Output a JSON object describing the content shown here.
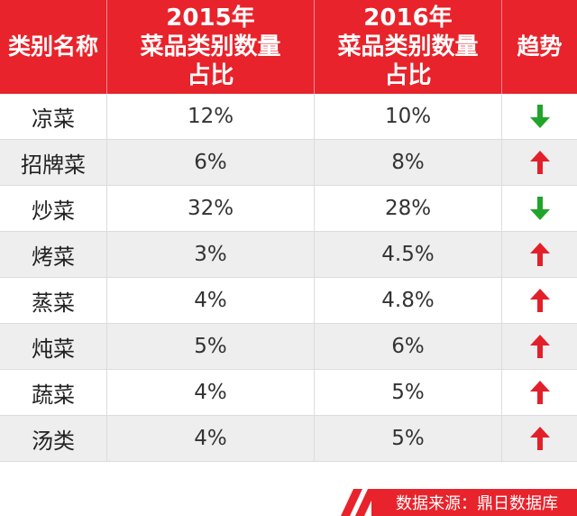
{
  "table": {
    "headers": [
      "类别名称",
      "2015年\n菜品类别数量\n占比",
      "2016年\n菜品类别数量\n占比",
      "趋势"
    ],
    "rows": [
      {
        "name": "凉菜",
        "y2015": "12%",
        "y2016": "10%",
        "trend": "down"
      },
      {
        "name": "招牌菜",
        "y2015": "6%",
        "y2016": "8%",
        "trend": "up"
      },
      {
        "name": "炒菜",
        "y2015": "32%",
        "y2016": "28%",
        "trend": "down"
      },
      {
        "name": "烤菜",
        "y2015": "3%",
        "y2016": "4.5%",
        "trend": "up"
      },
      {
        "name": "蒸菜",
        "y2015": "4%",
        "y2016": "4.8%",
        "trend": "up"
      },
      {
        "name": "炖菜",
        "y2015": "5%",
        "y2016": "6%",
        "trend": "up"
      },
      {
        "name": "蔬菜",
        "y2015": "4%",
        "y2016": "5%",
        "trend": "up"
      },
      {
        "name": "汤类",
        "y2015": "4%",
        "y2016": "5%",
        "trend": "up"
      }
    ]
  },
  "footer": {
    "source": "数据来源：鼎日数据库"
  },
  "colors": {
    "header_red": "#e8232b",
    "up_arrow": "#e3202a",
    "down_arrow": "#22a42b"
  },
  "icons": {
    "up": "up-arrow-icon",
    "down": "down-arrow-icon"
  }
}
